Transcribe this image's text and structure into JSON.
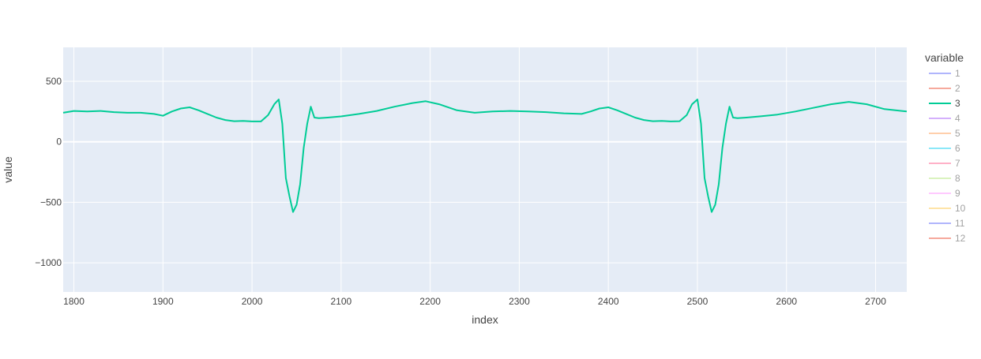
{
  "chart_data": {
    "type": "line",
    "xlabel": "index",
    "ylabel": "value",
    "xlim": [
      1788,
      2735
    ],
    "ylim": [
      -1240,
      780
    ],
    "x_ticks": [
      1800,
      1900,
      2000,
      2100,
      2200,
      2300,
      2400,
      2500,
      2600,
      2700
    ],
    "y_ticks": [
      500,
      0,
      -500,
      -1000
    ],
    "y_tick_labels": [
      "500",
      "0",
      "−500",
      "−1000"
    ],
    "grid": true,
    "plot_background": "#e5ecf6",
    "legend": {
      "title": "variable",
      "position": "right",
      "items": [
        {
          "label": "1",
          "color": "#636efa",
          "visible": false
        },
        {
          "label": "2",
          "color": "#ef553b",
          "visible": false
        },
        {
          "label": "3",
          "color": "#00cc96",
          "visible": true
        },
        {
          "label": "4",
          "color": "#ab63fa",
          "visible": false
        },
        {
          "label": "5",
          "color": "#ffa15a",
          "visible": false
        },
        {
          "label": "6",
          "color": "#19d3f3",
          "visible": false
        },
        {
          "label": "7",
          "color": "#ff6692",
          "visible": false
        },
        {
          "label": "8",
          "color": "#b6e880",
          "visible": false
        },
        {
          "label": "9",
          "color": "#ff97ff",
          "visible": false
        },
        {
          "label": "10",
          "color": "#fecb52",
          "visible": false
        },
        {
          "label": "11",
          "color": "#636efa",
          "visible": false
        },
        {
          "label": "12",
          "color": "#ef553b",
          "visible": false
        }
      ]
    },
    "series": [
      {
        "name": "3",
        "color": "#00cc96",
        "x": [
          1788,
          1800,
          1815,
          1830,
          1845,
          1860,
          1875,
          1890,
          1900,
          1910,
          1920,
          1930,
          1940,
          1950,
          1960,
          1970,
          1980,
          1990,
          2000,
          2010,
          2018,
          2025,
          2030,
          2034,
          2038,
          2042,
          2046,
          2050,
          2054,
          2058,
          2062,
          2066,
          2070,
          2075,
          2085,
          2100,
          2120,
          2140,
          2160,
          2180,
          2195,
          2210,
          2230,
          2250,
          2270,
          2290,
          2310,
          2330,
          2350,
          2370,
          2380,
          2390,
          2400,
          2410,
          2420,
          2430,
          2440,
          2450,
          2460,
          2470,
          2480,
          2488,
          2494,
          2500,
          2504,
          2508,
          2512,
          2516,
          2520,
          2524,
          2528,
          2532,
          2536,
          2540,
          2545,
          2555,
          2570,
          2590,
          2610,
          2630,
          2650,
          2670,
          2690,
          2710,
          2735
        ],
        "y": [
          240,
          255,
          250,
          255,
          245,
          240,
          240,
          230,
          215,
          250,
          275,
          285,
          260,
          230,
          200,
          180,
          170,
          172,
          168,
          168,
          220,
          310,
          350,
          150,
          -300,
          -450,
          -580,
          -520,
          -350,
          -50,
          150,
          290,
          200,
          195,
          200,
          210,
          230,
          255,
          290,
          320,
          335,
          310,
          260,
          240,
          250,
          255,
          250,
          245,
          235,
          230,
          250,
          275,
          285,
          260,
          230,
          200,
          180,
          170,
          172,
          168,
          170,
          220,
          310,
          350,
          150,
          -300,
          -450,
          -580,
          -520,
          -350,
          -50,
          150,
          290,
          200,
          195,
          200,
          210,
          225,
          250,
          280,
          310,
          330,
          310,
          270,
          250
        ]
      }
    ]
  }
}
